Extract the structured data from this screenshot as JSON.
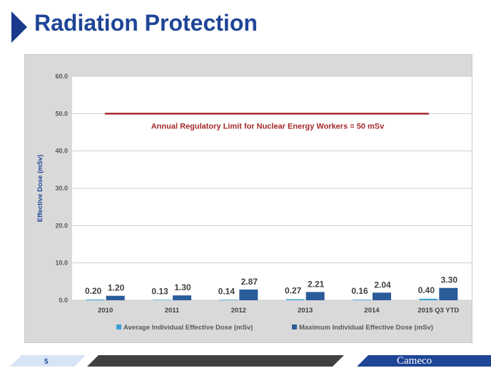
{
  "slide": {
    "title": "Radiation Protection",
    "page_number": "5",
    "brand": "Cameco",
    "colors": {
      "title": "#1e4596",
      "accent_dark": "#1a3a8c",
      "limit_line": "#a52a2a",
      "avg_series": "#3aa0d8",
      "max_series": "#2a5c9a",
      "panel": "#d9d9d9"
    }
  },
  "chart_data": {
    "type": "bar",
    "ylabel": "Effective Dose (mSv)",
    "xlabel": "",
    "ylim": [
      0,
      60
    ],
    "yticks": [
      "0.0",
      "10.0",
      "20.0",
      "30.0",
      "40.0",
      "50.0",
      "60.0"
    ],
    "grid": true,
    "legend_position": "bottom",
    "categories": [
      "2010",
      "2011",
      "2012",
      "2013",
      "2014",
      "2015 Q3 YTD"
    ],
    "series": [
      {
        "name": "Average Individual Effective Dose (mSv)",
        "values": [
          0.2,
          0.13,
          0.14,
          0.27,
          0.16,
          0.4
        ],
        "labels": [
          "0.20",
          "0.13",
          "0.14",
          "0.27",
          "0.16",
          "0.40"
        ],
        "color": "#3aa0d8"
      },
      {
        "name": "Maximum Individual Effective Dose (mSv)",
        "values": [
          1.2,
          1.3,
          2.87,
          2.21,
          2.04,
          3.3
        ],
        "labels": [
          "1.20",
          "1.30",
          "2.87",
          "2.21",
          "2.04",
          "3.30"
        ],
        "color": "#2a5c9a"
      }
    ],
    "reference_line": {
      "value": 50,
      "label": "Annual Regulatory Limit for Nuclear Energy Workers = 50 mSv",
      "color": "#a52a2a"
    }
  }
}
